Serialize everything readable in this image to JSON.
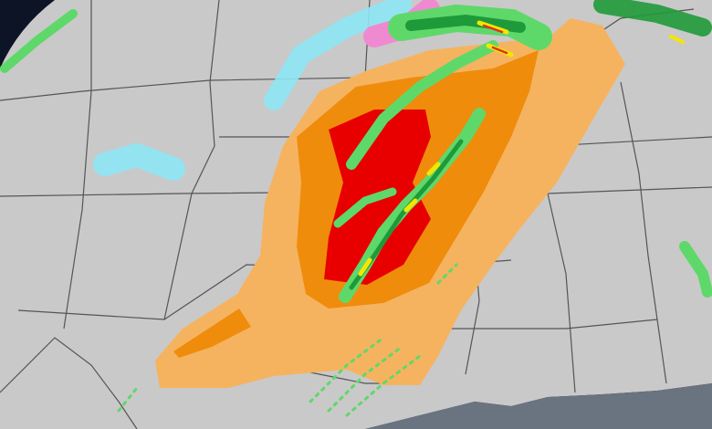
{
  "map": {
    "colors": {
      "space": "#0d1426",
      "land": "#c9c9c9",
      "water": "#6a7480",
      "borders": "#555555",
      "risk_marginal": "#f5b35f",
      "risk_enhanced": "#ef8c0c",
      "risk_high": "#e80000",
      "radar_light": "#5fd86a",
      "radar_medium": "#1f9a3a",
      "radar_heavy": "#f3e600",
      "radar_severe": "#e03020",
      "snow": "#8ee6f5",
      "mix": "#f08ad0"
    },
    "layers": [
      "base-map",
      "risk-outlook",
      "radar"
    ]
  }
}
